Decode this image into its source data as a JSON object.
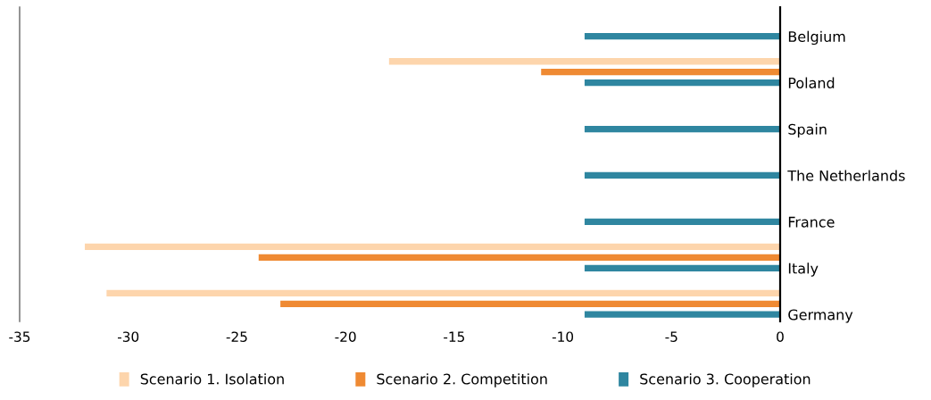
{
  "chart_data": {
    "type": "bar",
    "orientation": "horizontal",
    "categories": [
      "Belgium",
      "Poland",
      "Spain",
      "The Netherlands",
      "France",
      "Italy",
      "Germany"
    ],
    "series": [
      {
        "name": "Scenario 1. Isolation",
        "color": "#fdd5ac",
        "values": [
          null,
          -18,
          null,
          null,
          null,
          -32,
          -31
        ]
      },
      {
        "name": "Scenario 2. Competition",
        "color": "#ef8a33",
        "values": [
          null,
          -11,
          null,
          null,
          null,
          -24,
          -23
        ]
      },
      {
        "name": "Scenario 3. Cooperation",
        "color": "#2f86a0",
        "values": [
          -9,
          -9,
          -9,
          -9,
          -9,
          -9,
          -9
        ]
      }
    ],
    "xlim": [
      -35,
      0
    ],
    "xticks": [
      {
        "value": -35,
        "label": "-35"
      },
      {
        "value": -30,
        "label": "-30"
      },
      {
        "value": -25,
        "label": "-25"
      },
      {
        "value": -20,
        "label": "-20"
      },
      {
        "value": -15,
        "label": "-15"
      },
      {
        "value": -10,
        "label": "-10"
      },
      {
        "value": -5,
        "label": "-5"
      },
      0
    ],
    "grid": false,
    "legend": "bottom"
  }
}
